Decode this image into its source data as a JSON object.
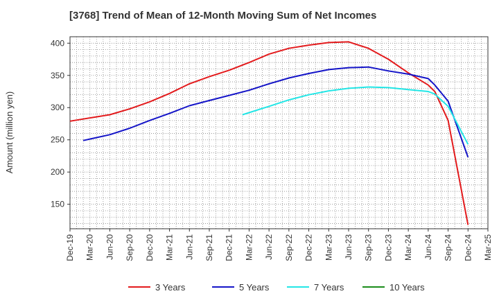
{
  "chart_data": {
    "type": "line",
    "title": "[3768]  Trend of Mean of 12-Month Moving Sum of Net Incomes",
    "ylabel": "Amount (million yen)",
    "xlabel": "",
    "x_ticks": [
      "Dec-19",
      "Mar-20",
      "Jun-20",
      "Sep-20",
      "Dec-20",
      "Mar-21",
      "Jun-21",
      "Sep-21",
      "Dec-21",
      "Mar-22",
      "Jun-22",
      "Sep-22",
      "Dec-22",
      "Mar-23",
      "Jun-23",
      "Sep-23",
      "Dec-23",
      "Mar-24",
      "Jun-24",
      "Sep-24",
      "Dec-24",
      "Mar-25"
    ],
    "y_ticks": [
      150,
      200,
      250,
      300,
      350,
      400
    ],
    "ylim": [
      112,
      410
    ],
    "grid": true,
    "legend_position": "bottom",
    "series": [
      {
        "name": "3 Years",
        "color": "#e31a1c",
        "points": [
          [
            "Dec-19",
            279
          ],
          [
            "Mar-20",
            284
          ],
          [
            "Jun-20",
            289
          ],
          [
            "Sep-20",
            298
          ],
          [
            "Dec-20",
            309
          ],
          [
            "Mar-21",
            322
          ],
          [
            "Jun-21",
            337
          ],
          [
            "Sep-21",
            348
          ],
          [
            "Dec-21",
            358
          ],
          [
            "Mar-22",
            370
          ],
          [
            "Jun-22",
            383
          ],
          [
            "Sep-22",
            392
          ],
          [
            "Dec-22",
            397
          ],
          [
            "Mar-23",
            401
          ],
          [
            "Jun-23",
            402
          ],
          [
            "Sep-23",
            392
          ],
          [
            "Dec-23",
            375
          ],
          [
            "Mar-24",
            354
          ],
          [
            "Jun-24",
            335
          ],
          [
            "Jul-24",
            325
          ],
          [
            "Sep-24",
            280
          ],
          [
            "Dec-24",
            118
          ]
        ]
      },
      {
        "name": "5 Years",
        "color": "#1414c8",
        "points": [
          [
            "Feb-20",
            249
          ],
          [
            "Jun-20",
            258
          ],
          [
            "Sep-20",
            268
          ],
          [
            "Dec-20",
            280
          ],
          [
            "Mar-21",
            291
          ],
          [
            "Jun-21",
            303
          ],
          [
            "Sep-21",
            311
          ],
          [
            "Dec-21",
            319
          ],
          [
            "Mar-22",
            327
          ],
          [
            "Jun-22",
            337
          ],
          [
            "Sep-22",
            346
          ],
          [
            "Dec-22",
            353
          ],
          [
            "Mar-23",
            359
          ],
          [
            "Jun-23",
            362
          ],
          [
            "Sep-23",
            363
          ],
          [
            "Dec-23",
            357
          ],
          [
            "Mar-24",
            352
          ],
          [
            "Jun-24",
            345
          ],
          [
            "Jul-24",
            335
          ],
          [
            "Sep-24",
            310
          ],
          [
            "Dec-24",
            223
          ]
        ]
      },
      {
        "name": "7 Years",
        "color": "#22e6e6",
        "points": [
          [
            "Feb-22",
            289
          ],
          [
            "Jun-22",
            302
          ],
          [
            "Sep-22",
            312
          ],
          [
            "Dec-22",
            320
          ],
          [
            "Mar-23",
            326
          ],
          [
            "Jun-23",
            330
          ],
          [
            "Sep-23",
            332
          ],
          [
            "Dec-23",
            331
          ],
          [
            "Mar-24",
            328
          ],
          [
            "Jun-24",
            325
          ],
          [
            "Jul-24",
            321
          ],
          [
            "Sep-24",
            302
          ],
          [
            "Dec-24",
            243
          ]
        ]
      },
      {
        "name": "10 Years",
        "color": "#1a8c1a",
        "points": []
      }
    ]
  }
}
